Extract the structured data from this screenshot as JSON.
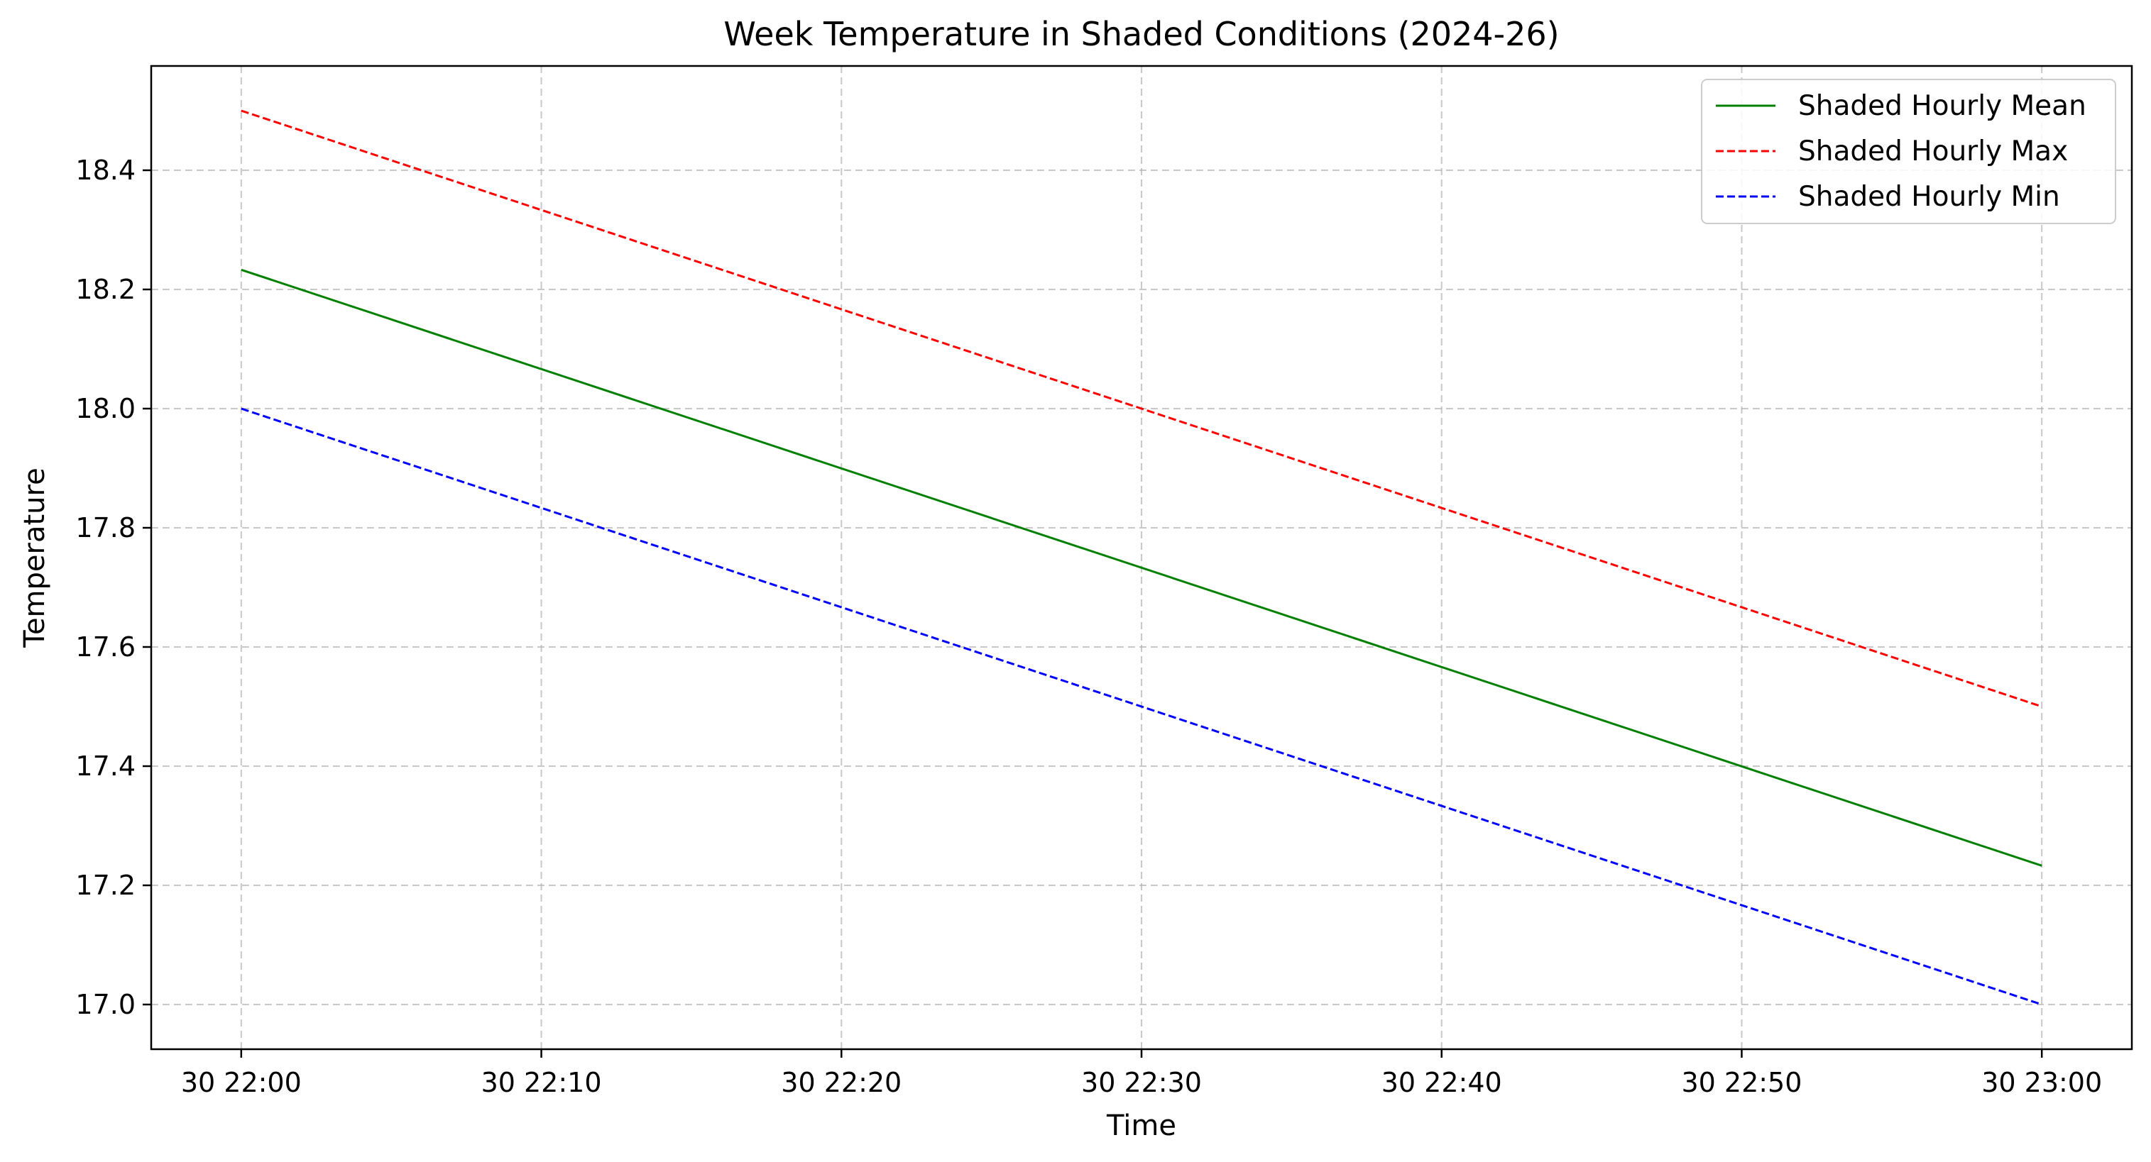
{
  "chart_data": {
    "type": "line",
    "title": "Week Temperature in Shaded Conditions (2024-26)",
    "xlabel": "Time",
    "ylabel": "Temperature",
    "x": [
      "30 22:00",
      "30 23:00"
    ],
    "x_ticks": [
      "30 22:00",
      "30 22:10",
      "30 22:20",
      "30 22:30",
      "30 22:40",
      "30 22:50",
      "30 23:00"
    ],
    "y_ticks": [
      "17.0",
      "17.2",
      "17.4",
      "17.6",
      "17.8",
      "18.0",
      "18.2",
      "18.4"
    ],
    "xlim": [
      "30 21:57",
      "30 23:03"
    ],
    "ylim": [
      16.925,
      18.575
    ],
    "grid": true,
    "legend_position": "top-right",
    "series": [
      {
        "name": "Shaded Hourly Mean",
        "values": [
          18.233,
          17.233
        ],
        "color": "#008000",
        "style": "solid"
      },
      {
        "name": "Shaded Hourly Max",
        "values": [
          18.5,
          17.5
        ],
        "color": "#ff0000",
        "style": "dashed"
      },
      {
        "name": "Shaded Hourly Min",
        "values": [
          18.0,
          17.0
        ],
        "color": "#0000ff",
        "style": "dashed"
      }
    ]
  }
}
